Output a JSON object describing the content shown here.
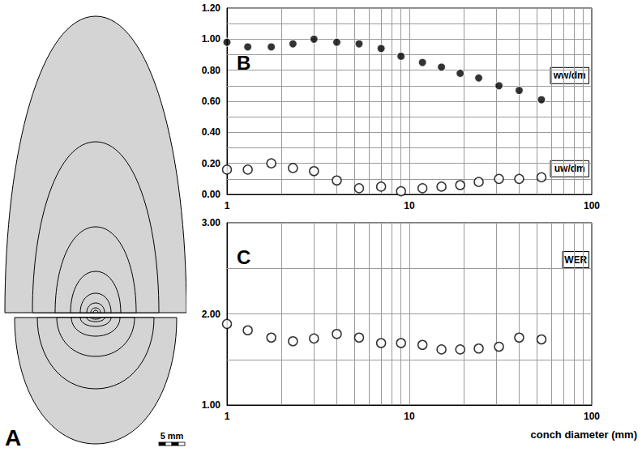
{
  "drawing": {
    "label": "A",
    "scale_bar": "5 mm"
  },
  "chart_data": [
    {
      "type": "scatter",
      "title": "B",
      "x": [
        1.0,
        1.3,
        1.75,
        2.3,
        3.0,
        4.0,
        5.3,
        7.0,
        9.0,
        11.8,
        15.0,
        19.0,
        24.0,
        31.0,
        40.0,
        53.0
      ],
      "series": [
        {
          "name": "ww/dm",
          "color": "#000000",
          "marker": "filled",
          "values": [
            0.98,
            0.95,
            0.95,
            0.97,
            1.0,
            0.98,
            0.97,
            0.94,
            0.89,
            0.85,
            0.82,
            0.78,
            0.75,
            0.7,
            0.67,
            0.61
          ]
        },
        {
          "name": "uw/dm",
          "color": "#000000",
          "marker": "open",
          "values": [
            0.16,
            0.16,
            0.2,
            0.17,
            0.15,
            0.09,
            0.04,
            0.05,
            0.02,
            0.04,
            0.05,
            0.06,
            0.08,
            0.1,
            0.1,
            0.11
          ]
        }
      ],
      "xlim": [
        1,
        100
      ],
      "xticks": [
        1,
        10,
        100
      ],
      "ylim": [
        0,
        1.2
      ],
      "yticks": [
        {
          "value": 0,
          "label": "0.00"
        },
        {
          "value": 0.2,
          "label": "0.20"
        },
        {
          "value": 0.4,
          "label": "0.40"
        },
        {
          "value": 0.6,
          "label": "0.60"
        },
        {
          "value": 0.8,
          "label": "0.80"
        },
        {
          "value": 1.0,
          "label": "1.00"
        },
        {
          "value": 1.2,
          "label": "1.20"
        }
      ],
      "log": "x",
      "grid": true
    },
    {
      "type": "scatter",
      "title": "C",
      "x_label": "conch diameter (mm)",
      "x": [
        1.0,
        1.3,
        1.75,
        2.3,
        3.0,
        4.0,
        5.3,
        7.0,
        9.0,
        11.8,
        15.0,
        19.0,
        24.0,
        31.0,
        40.0,
        53.0
      ],
      "series": [
        {
          "name": "WER",
          "color": "#000000",
          "marker": "open",
          "values": [
            1.89,
            1.82,
            1.74,
            1.7,
            1.73,
            1.78,
            1.74,
            1.68,
            1.68,
            1.66,
            1.61,
            1.61,
            1.62,
            1.64,
            1.74,
            1.72
          ]
        }
      ],
      "xlim": [
        1,
        100
      ],
      "xticks": [
        1,
        10,
        100
      ],
      "ylim": [
        1,
        3
      ],
      "yticks": [
        {
          "value": 1,
          "label": "1.00"
        },
        {
          "value": 2,
          "label": "2.00"
        },
        {
          "value": 3,
          "label": "3.00"
        }
      ],
      "log": "x",
      "grid": true
    }
  ]
}
